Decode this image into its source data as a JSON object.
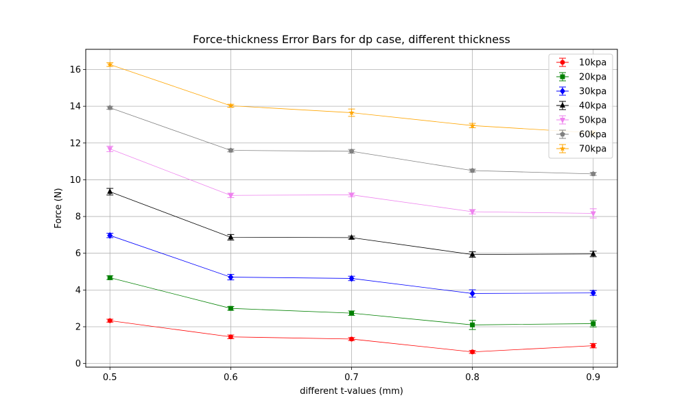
{
  "chart_data": {
    "type": "line",
    "title": "Force-thickness Error Bars for dp case, different thickness",
    "xlabel": "different t-values (mm)",
    "ylabel": "Force (N)",
    "x": [
      0.5,
      0.6,
      0.7,
      0.8,
      0.9
    ],
    "x_tick_labels": [
      "0.5",
      "0.6",
      "0.7",
      "0.8",
      "0.9"
    ],
    "xlim": [
      0.48,
      0.92
    ],
    "ylim": [
      -0.2,
      17.1
    ],
    "y_ticks": [
      0,
      2,
      4,
      6,
      8,
      10,
      12,
      14,
      16
    ],
    "y_tick_labels": [
      "0",
      "2",
      "4",
      "6",
      "8",
      "10",
      "12",
      "14",
      "16"
    ],
    "grid": true,
    "legend_position": "top-right",
    "series": [
      {
        "name": "10kpa",
        "color": "#ff0000",
        "marker": "circle",
        "values": [
          2.33,
          1.45,
          1.33,
          0.63,
          0.97
        ],
        "errors": [
          0.08,
          0.1,
          0.08,
          0.08,
          0.12
        ]
      },
      {
        "name": "20kpa",
        "color": "#008000",
        "marker": "square",
        "values": [
          4.67,
          3.0,
          2.74,
          2.1,
          2.17
        ],
        "errors": [
          0.1,
          0.1,
          0.12,
          0.25,
          0.18
        ]
      },
      {
        "name": "30kpa",
        "color": "#0000ff",
        "marker": "diamond",
        "values": [
          6.97,
          4.7,
          4.63,
          3.81,
          3.84
        ],
        "errors": [
          0.12,
          0.15,
          0.12,
          0.2,
          0.13
        ]
      },
      {
        "name": "40kpa",
        "color": "#000000",
        "marker": "triangle-up",
        "values": [
          9.35,
          6.87,
          6.85,
          5.93,
          5.96
        ],
        "errors": [
          0.18,
          0.15,
          0.08,
          0.15,
          0.15
        ]
      },
      {
        "name": "50kpa",
        "color": "#ee82ee",
        "marker": "triangle-down",
        "values": [
          11.68,
          9.15,
          9.18,
          8.26,
          8.17
        ],
        "errors": [
          0.15,
          0.12,
          0.1,
          0.12,
          0.25
        ]
      },
      {
        "name": "60kpa",
        "color": "#808080",
        "marker": "pentagon",
        "values": [
          13.92,
          11.6,
          11.55,
          10.5,
          10.32
        ],
        "errors": [
          0.08,
          0.08,
          0.1,
          0.08,
          0.08
        ]
      },
      {
        "name": "70kpa",
        "color": "#ffa500",
        "marker": "star",
        "values": [
          16.27,
          14.03,
          13.65,
          12.95,
          12.55
        ],
        "errors": [
          0.1,
          0.08,
          0.2,
          0.12,
          0.1
        ]
      }
    ]
  }
}
